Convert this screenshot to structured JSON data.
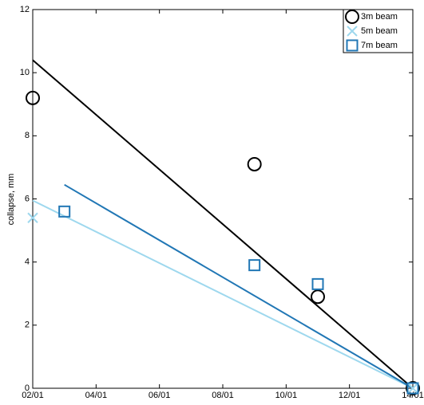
{
  "chart_data": {
    "type": "scatter",
    "y_label": "collapse, mm",
    "xlim": [
      2,
      14
    ],
    "xticks": [
      {
        "value": 2,
        "label": "02/01"
      },
      {
        "value": 4,
        "label": "04/01"
      },
      {
        "value": 6,
        "label": "06/01"
      },
      {
        "value": 8,
        "label": "08/01"
      },
      {
        "value": 10,
        "label": "10/01"
      },
      {
        "value": 12,
        "label": "12/01"
      },
      {
        "value": 14,
        "label": "14/01"
      }
    ],
    "ylim": [
      0,
      12
    ],
    "yticks": [
      0,
      2,
      4,
      6,
      8,
      10,
      12
    ],
    "legend": "top-right",
    "series": [
      {
        "name": "3m beam",
        "color": "#000000",
        "marker": "circle",
        "x": [
          2,
          9,
          11,
          14
        ],
        "values": [
          9.2,
          7.1,
          2.9,
          0
        ]
      },
      {
        "name": "5m beam",
        "color": "#9ed8ee",
        "marker": "cross",
        "x": [
          2,
          14
        ],
        "values": [
          5.4,
          0
        ]
      },
      {
        "name": "7m beam",
        "color": "#2177b5",
        "marker": "square",
        "x": [
          3,
          9,
          11,
          14
        ],
        "values": [
          5.6,
          3.9,
          3.3,
          0
        ]
      }
    ],
    "fit_lines": [
      {
        "color": "#000000",
        "x": [
          2,
          14
        ],
        "values": [
          10.4,
          0
        ]
      },
      {
        "color": "#9ed8ee",
        "x": [
          2,
          14
        ],
        "values": [
          5.95,
          0
        ]
      },
      {
        "color": "#2177b5",
        "x": [
          3,
          14
        ],
        "values": [
          6.45,
          0
        ]
      }
    ]
  }
}
